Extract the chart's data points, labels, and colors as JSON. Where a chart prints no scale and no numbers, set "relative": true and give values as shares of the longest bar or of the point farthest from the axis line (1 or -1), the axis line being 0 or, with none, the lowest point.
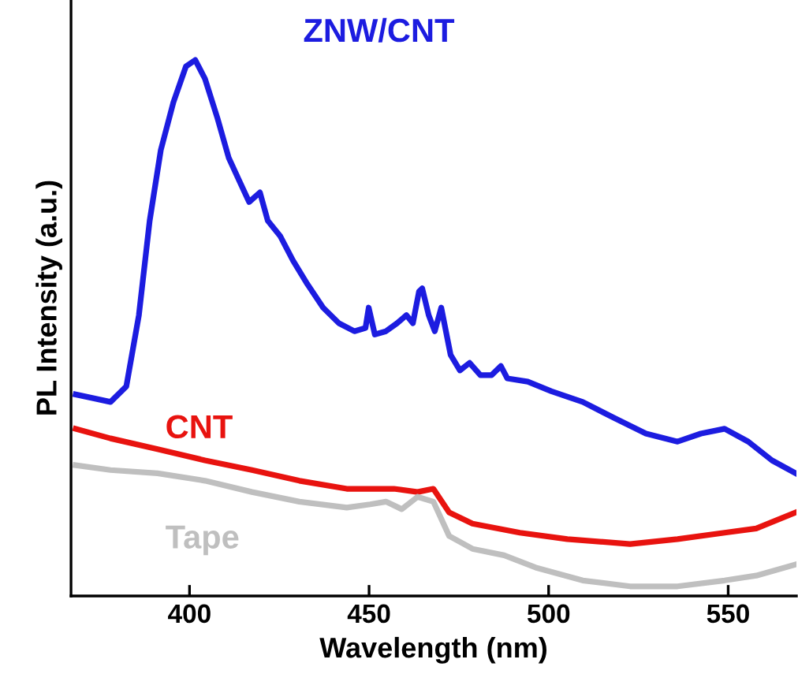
{
  "chart_data": {
    "type": "line",
    "relative": true,
    "xlabel": "Wavelength (nm)",
    "ylabel": "PL Intensity (a.u.)",
    "xlim": [
      367,
      569
    ],
    "xticks": [
      400,
      450,
      500,
      550
    ],
    "grid": false,
    "legend": false,
    "marker": "none",
    "line_style": "solid",
    "series": [
      {
        "name": "ZNW/CNT",
        "color": "#1c1ce0",
        "x": [
          368.3,
          378.0,
          382.4,
          385.9,
          388.9,
          392.0,
          395.5,
          399.0,
          401.6,
          404.3,
          407.8,
          410.9,
          413.9,
          416.6,
          419.6,
          421.8,
          425.3,
          428.8,
          432.8,
          437.2,
          441.6,
          445.9,
          449.0,
          449.9,
          451.6,
          454.7,
          457.8,
          460.4,
          462.2,
          463.9,
          464.8,
          466.6,
          468.3,
          470.1,
          472.7,
          475.3,
          478.0,
          481.0,
          484.1,
          486.7,
          488.5,
          494.2,
          500.8,
          509.5,
          518.3,
          527.1,
          535.9,
          542.4,
          549.0,
          555.6,
          562.2,
          568.8
        ],
        "values": [
          0.376,
          0.362,
          0.391,
          0.524,
          0.7,
          0.832,
          0.921,
          0.988,
          1,
          0.965,
          0.891,
          0.818,
          0.774,
          0.735,
          0.753,
          0.7,
          0.671,
          0.626,
          0.582,
          0.538,
          0.509,
          0.494,
          0.5,
          0.538,
          0.488,
          0.494,
          0.509,
          0.524,
          0.509,
          0.568,
          0.574,
          0.524,
          0.494,
          0.538,
          0.45,
          0.421,
          0.435,
          0.412,
          0.412,
          0.429,
          0.406,
          0.4,
          0.382,
          0.362,
          0.332,
          0.303,
          0.288,
          0.303,
          0.312,
          0.288,
          0.253,
          0.229
        ]
      },
      {
        "name": "CNT",
        "color": "#e8130f",
        "x": [
          368.3,
          378.0,
          391.1,
          404.3,
          417.4,
          430.6,
          443.8,
          456.9,
          463.5,
          467.9,
          472.3,
          478.8,
          492.0,
          505.2,
          522.7,
          535.9,
          549.0,
          557.8,
          568.8
        ],
        "values": [
          0.312,
          0.294,
          0.274,
          0.253,
          0.235,
          0.215,
          0.2,
          0.2,
          0.194,
          0.2,
          0.156,
          0.135,
          0.118,
          0.106,
          0.097,
          0.106,
          0.118,
          0.126,
          0.156
        ]
      },
      {
        "name": "Tape",
        "color": "#bfbfbf",
        "x": [
          368.3,
          378.0,
          391.1,
          404.3,
          417.4,
          430.6,
          443.8,
          450.3,
          454.7,
          459.1,
          463.5,
          467.9,
          472.3,
          478.8,
          487.6,
          496.4,
          509.5,
          522.7,
          535.9,
          549.0,
          557.8,
          568.8
        ],
        "values": [
          0.244,
          0.235,
          0.229,
          0.215,
          0.194,
          0.176,
          0.165,
          0.171,
          0.176,
          0.162,
          0.185,
          0.176,
          0.112,
          0.088,
          0.076,
          0.053,
          0.029,
          0.018,
          0.018,
          0.029,
          0.038,
          0.059
        ]
      }
    ]
  }
}
